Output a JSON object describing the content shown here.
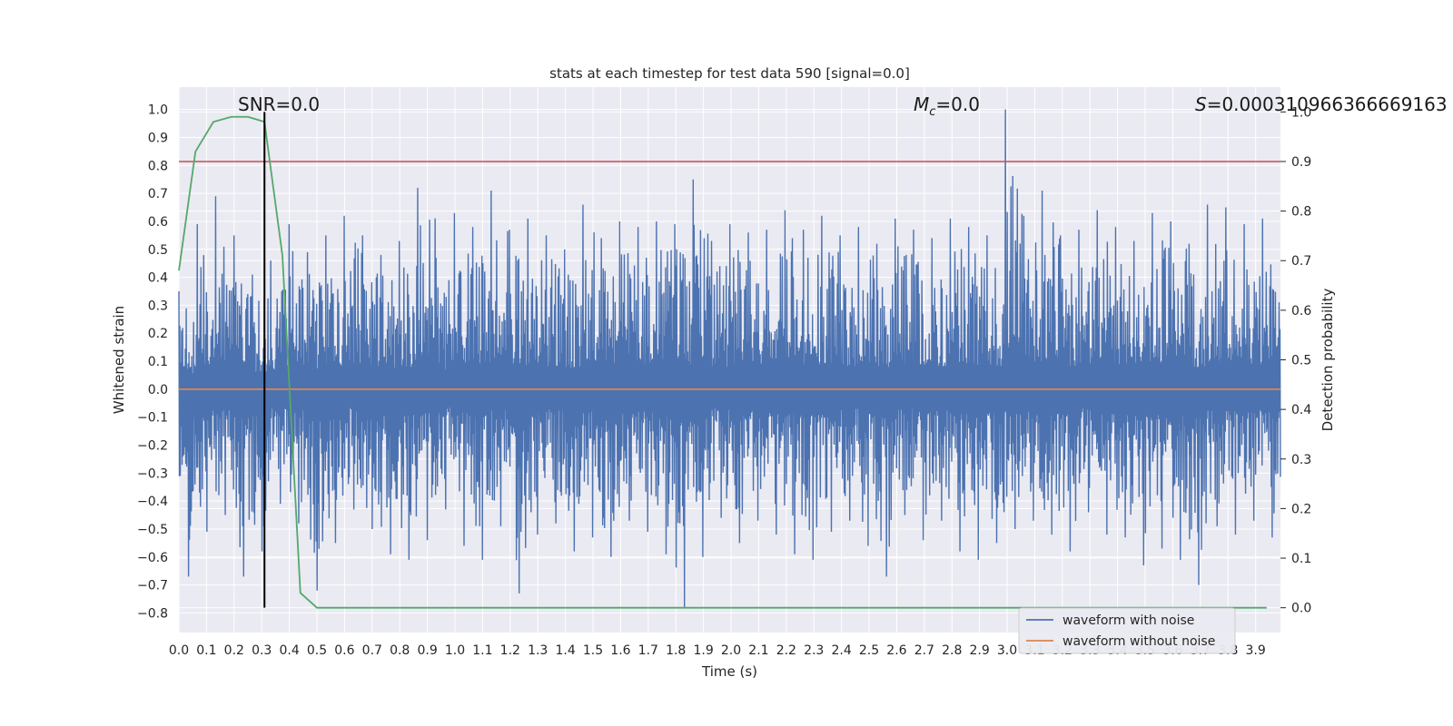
{
  "chart_data": {
    "type": "line",
    "title": "stats at each timestep for test data 590 [signal=0.0]",
    "xlabel": "Time (s)",
    "ylabel": "Whitened strain",
    "ylabel_right": "Detection probability",
    "xlim": [
      0.0,
      3.99
    ],
    "ylim": [
      -0.87,
      1.08
    ],
    "ylim_right": [
      -0.05,
      1.05
    ],
    "grid": true,
    "legend_position": "lower-right",
    "x_ticks": [
      "0.0",
      "0.1",
      "0.2",
      "0.3",
      "0.4",
      "0.5",
      "0.6",
      "0.7",
      "0.8",
      "0.9",
      "1.0",
      "1.1",
      "1.2",
      "1.3",
      "1.4",
      "1.5",
      "1.6",
      "1.7",
      "1.8",
      "1.9",
      "2.0",
      "2.1",
      "2.2",
      "2.3",
      "2.4",
      "2.5",
      "2.6",
      "2.7",
      "2.8",
      "2.9",
      "3.0",
      "3.1",
      "3.2",
      "3.3",
      "3.4",
      "3.5",
      "3.6",
      "3.7",
      "3.8",
      "3.9"
    ],
    "y_ticks_left": [
      "1.0",
      "0.9",
      "0.8",
      "0.7",
      "0.6",
      "0.5",
      "0.4",
      "0.3",
      "0.2",
      "0.1",
      "0.0",
      "−0.1",
      "−0.2",
      "−0.3",
      "−0.4",
      "−0.5",
      "−0.6",
      "−0.7",
      "−0.8"
    ],
    "y_ticks_right": [
      "1.0",
      "0.9",
      "0.8",
      "0.7",
      "0.6",
      "0.5",
      "0.4",
      "0.3",
      "0.2",
      "0.1",
      "0.0"
    ],
    "annotations": {
      "snr": "SNR=0.0",
      "mc_symbol": "M",
      "mc_sub": "c",
      "mc_value": "=0.0",
      "s_symbol": "S",
      "s_value": "=0.00031096636666916​3"
    },
    "threshold_right": 0.9,
    "marker_time": 0.31,
    "series": [
      {
        "name": "waveform with noise",
        "color": "#4c72b0",
        "axis": "left",
        "envelope_upper": [
          0.35,
          0.59,
          0.69,
          0.55,
          0.41,
          0.46,
          0.59,
          0.49,
          0.55,
          0.62,
          0.55,
          0.48,
          0.53,
          0.72,
          0.47,
          0.63,
          0.58,
          0.71,
          0.57,
          0.61,
          0.55,
          0.5,
          0.66,
          0.54,
          0.6,
          0.58,
          0.6,
          0.59,
          0.75,
          0.53,
          0.59,
          0.56,
          0.57,
          0.64,
          0.57,
          0.62,
          0.55,
          0.58,
          0.52,
          0.61,
          0.57,
          0.54,
          0.61,
          0.58,
          0.55,
          1.0,
          0.62,
          0.71,
          0.55,
          0.57,
          0.64,
          0.58,
          0.53,
          0.63,
          0.6,
          0.52,
          0.66,
          0.65,
          0.59,
          0.61
        ],
        "envelope_lower": [
          -0.67,
          -0.51,
          -0.45,
          -0.67,
          -0.58,
          -0.41,
          -0.48,
          -0.72,
          -0.55,
          -0.43,
          -0.5,
          -0.59,
          -0.61,
          -0.54,
          -0.43,
          -0.56,
          -0.61,
          -0.49,
          -0.73,
          -0.52,
          -0.48,
          -0.58,
          -0.53,
          -0.6,
          -0.47,
          -0.51,
          -0.59,
          -0.78,
          -0.6,
          -0.46,
          -0.55,
          -0.47,
          -0.52,
          -0.59,
          -0.61,
          -0.51,
          -0.47,
          -0.56,
          -0.67,
          -0.45,
          -0.54,
          -0.47,
          -0.58,
          -0.61,
          -0.55,
          -0.5,
          -0.47,
          -0.52,
          -0.58,
          -0.44,
          -0.52,
          -0.53,
          -0.63,
          -0.57,
          -0.61,
          -0.7,
          -0.49,
          -0.52,
          -0.47,
          -0.53
        ]
      },
      {
        "name": "waveform without noise",
        "color": "#dd8452",
        "axis": "left",
        "x": [
          0.0,
          3.99
        ],
        "values": [
          0.0,
          0.0
        ]
      },
      {
        "name": "",
        "color": "#55a868",
        "axis": "right",
        "x": [
          0.0,
          0.06,
          0.125,
          0.19,
          0.25,
          0.31,
          0.375,
          0.44,
          0.5,
          0.56,
          0.625,
          3.94
        ],
        "values": [
          0.68,
          0.92,
          0.98,
          0.99,
          0.99,
          0.98,
          0.71,
          0.03,
          0.0,
          0.0,
          0.0,
          0.0
        ]
      }
    ]
  },
  "colors": {
    "plot_bg": "#eaeaf2",
    "grid": "#ffffff",
    "threshold": "#c44e52",
    "marker": "#000000"
  }
}
